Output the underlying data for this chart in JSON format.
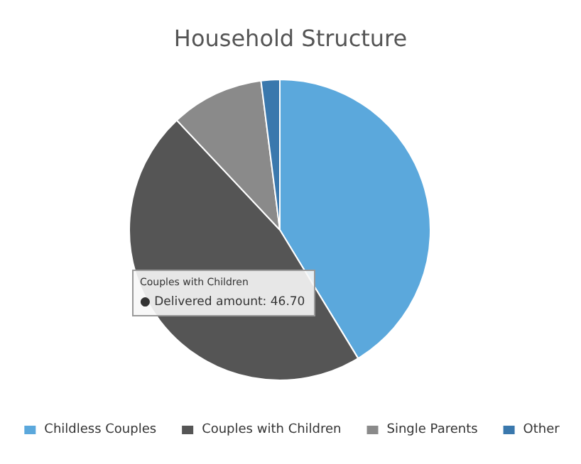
{
  "chart_data": {
    "type": "pie",
    "title": "Household Structure",
    "categories": [
      "Childless Couples",
      "Couples with Children",
      "Single Parents",
      "Other"
    ],
    "values": [
      41.3,
      46.7,
      10.0,
      2.0
    ],
    "colors": [
      "#5ba8dc",
      "#555555",
      "#8a8a8a",
      "#3a78ad"
    ],
    "legend": "bottom",
    "annotations": [
      "Couples with Children",
      "● Delivered amount: 46.70"
    ]
  }
}
